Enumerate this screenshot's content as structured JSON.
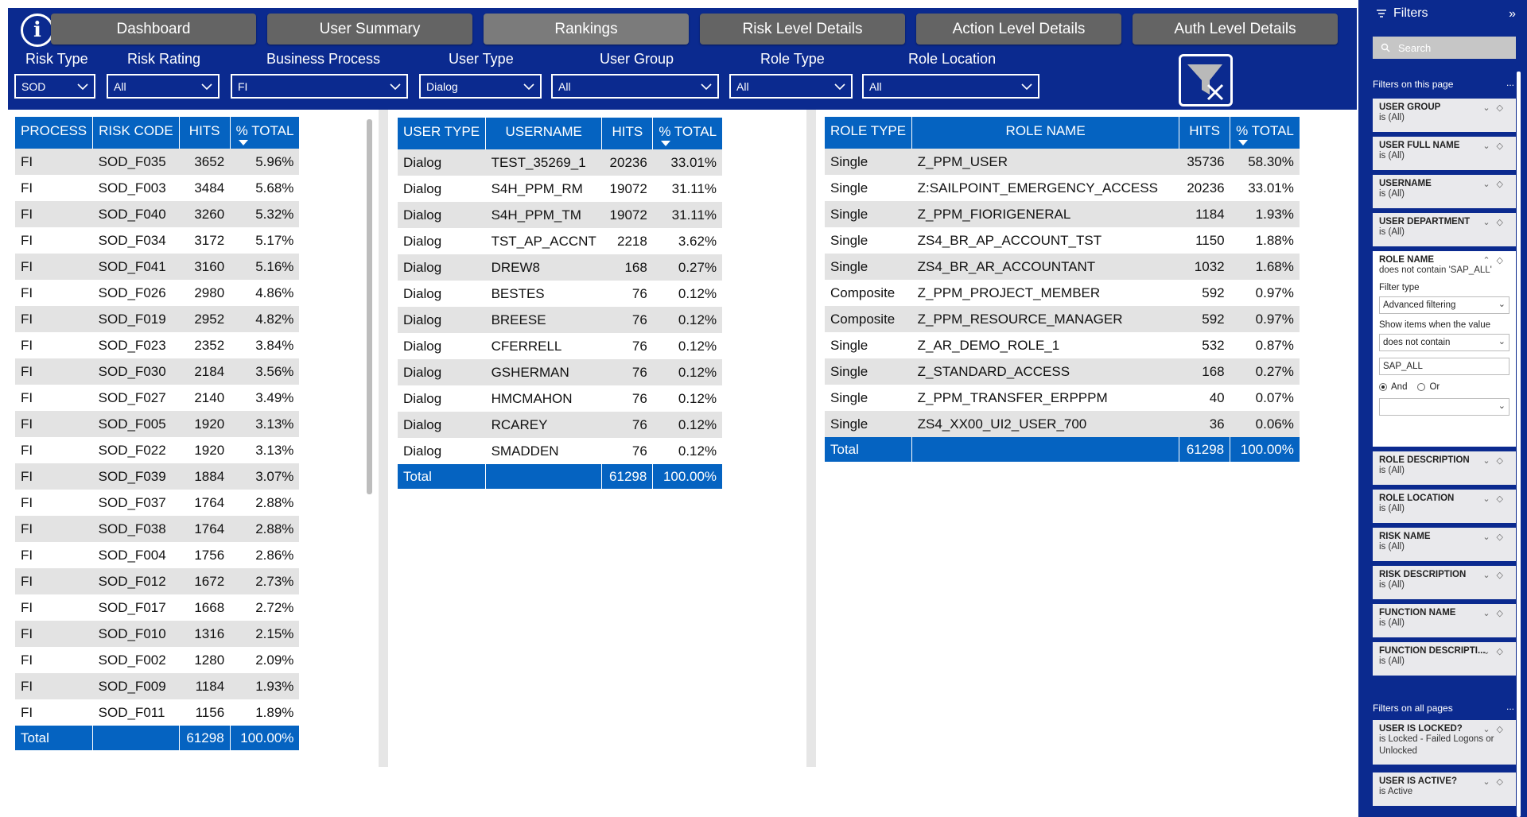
{
  "nav_tabs": [
    "Dashboard",
    "User Summary",
    "Rankings",
    "Risk Level Details",
    "Action Level Details",
    "Auth Level Details"
  ],
  "active_tab": "Rankings",
  "info_icon": "i",
  "slicers": {
    "risk_type": {
      "label": "Risk Type",
      "value": "SOD"
    },
    "risk_rating": {
      "label": "Risk Rating",
      "value": "All"
    },
    "business_process": {
      "label": "Business Process",
      "value": "FI"
    },
    "user_type": {
      "label": "User Type",
      "value": "Dialog"
    },
    "user_group": {
      "label": "User Group",
      "value": "All"
    },
    "role_type": {
      "label": "Role Type",
      "value": "All"
    },
    "role_location": {
      "label": "Role Location",
      "value": "All"
    }
  },
  "clear_filters_icon": "filter-clear-icon",
  "risk_table": {
    "headers": [
      "PROCESS",
      "RISK CODE",
      "HITS",
      "% TOTAL"
    ],
    "rows": [
      [
        "FI",
        "SOD_F035",
        "3652",
        "5.96%"
      ],
      [
        "FI",
        "SOD_F003",
        "3484",
        "5.68%"
      ],
      [
        "FI",
        "SOD_F040",
        "3260",
        "5.32%"
      ],
      [
        "FI",
        "SOD_F034",
        "3172",
        "5.17%"
      ],
      [
        "FI",
        "SOD_F041",
        "3160",
        "5.16%"
      ],
      [
        "FI",
        "SOD_F026",
        "2980",
        "4.86%"
      ],
      [
        "FI",
        "SOD_F019",
        "2952",
        "4.82%"
      ],
      [
        "FI",
        "SOD_F023",
        "2352",
        "3.84%"
      ],
      [
        "FI",
        "SOD_F030",
        "2184",
        "3.56%"
      ],
      [
        "FI",
        "SOD_F027",
        "2140",
        "3.49%"
      ],
      [
        "FI",
        "SOD_F005",
        "1920",
        "3.13%"
      ],
      [
        "FI",
        "SOD_F022",
        "1920",
        "3.13%"
      ],
      [
        "FI",
        "SOD_F039",
        "1884",
        "3.07%"
      ],
      [
        "FI",
        "SOD_F037",
        "1764",
        "2.88%"
      ],
      [
        "FI",
        "SOD_F038",
        "1764",
        "2.88%"
      ],
      [
        "FI",
        "SOD_F004",
        "1756",
        "2.86%"
      ],
      [
        "FI",
        "SOD_F012",
        "1672",
        "2.73%"
      ],
      [
        "FI",
        "SOD_F017",
        "1668",
        "2.72%"
      ],
      [
        "FI",
        "SOD_F010",
        "1316",
        "2.15%"
      ],
      [
        "FI",
        "SOD_F002",
        "1280",
        "2.09%"
      ],
      [
        "FI",
        "SOD_F009",
        "1184",
        "1.93%"
      ],
      [
        "FI",
        "SOD_F011",
        "1156",
        "1.89%"
      ]
    ],
    "total": [
      "Total",
      "",
      "61298",
      "100.00%"
    ]
  },
  "user_table": {
    "headers": [
      "USER TYPE",
      "USERNAME",
      "HITS",
      "% TOTAL"
    ],
    "rows": [
      [
        "Dialog",
        "TEST_35269_1",
        "20236",
        "33.01%"
      ],
      [
        "Dialog",
        "S4H_PPM_RM",
        "19072",
        "31.11%"
      ],
      [
        "Dialog",
        "S4H_PPM_TM",
        "19072",
        "31.11%"
      ],
      [
        "Dialog",
        "TST_AP_ACCNT",
        "2218",
        "3.62%"
      ],
      [
        "Dialog",
        "DREW8",
        "168",
        "0.27%"
      ],
      [
        "Dialog",
        "BESTES",
        "76",
        "0.12%"
      ],
      [
        "Dialog",
        "BREESE",
        "76",
        "0.12%"
      ],
      [
        "Dialog",
        "CFERRELL",
        "76",
        "0.12%"
      ],
      [
        "Dialog",
        "GSHERMAN",
        "76",
        "0.12%"
      ],
      [
        "Dialog",
        "HMCMAHON",
        "76",
        "0.12%"
      ],
      [
        "Dialog",
        "RCAREY",
        "76",
        "0.12%"
      ],
      [
        "Dialog",
        "SMADDEN",
        "76",
        "0.12%"
      ]
    ],
    "total": [
      "Total",
      "",
      "61298",
      "100.00%"
    ]
  },
  "role_table": {
    "headers": [
      "ROLE TYPE",
      "ROLE NAME",
      "HITS",
      "% TOTAL"
    ],
    "rows": [
      [
        "Single",
        "Z_PPM_USER",
        "35736",
        "58.30%"
      ],
      [
        "Single",
        "Z:SAILPOINT_EMERGENCY_ACCESS",
        "20236",
        "33.01%"
      ],
      [
        "Single",
        "Z_PPM_FIORIGENERAL",
        "1184",
        "1.93%"
      ],
      [
        "Single",
        "ZS4_BR_AP_ACCOUNT_TST",
        "1150",
        "1.88%"
      ],
      [
        "Single",
        "ZS4_BR_AR_ACCOUNTANT",
        "1032",
        "1.68%"
      ],
      [
        "Composite",
        "Z_PPM_PROJECT_MEMBER",
        "592",
        "0.97%"
      ],
      [
        "Composite",
        "Z_PPM_RESOURCE_MANAGER",
        "592",
        "0.97%"
      ],
      [
        "Single",
        "Z_AR_DEMO_ROLE_1",
        "532",
        "0.87%"
      ],
      [
        "Single",
        "Z_STANDARD_ACCESS",
        "168",
        "0.27%"
      ],
      [
        "Single",
        "Z_PPM_TRANSFER_ERPPPM",
        "40",
        "0.07%"
      ],
      [
        "Single",
        "ZS4_XX00_UI2_USER_700",
        "36",
        "0.06%"
      ]
    ],
    "total": [
      "Total",
      "",
      "61298",
      "100.00%"
    ]
  },
  "filter_pane": {
    "title": "Filters",
    "search_placeholder": "Search",
    "section_page": "Filters on this page",
    "section_all": "Filters on all pages",
    "more": "...",
    "page_filters": [
      {
        "name": "USER GROUP",
        "state": "is (All)"
      },
      {
        "name": "USER FULL NAME",
        "state": "is (All)"
      },
      {
        "name": "USERNAME",
        "state": "is (All)"
      },
      {
        "name": "USER DEPARTMENT",
        "state": "is (All)"
      }
    ],
    "role_name_filter": {
      "name": "ROLE NAME",
      "state": "does not contain 'SAP_ALL'",
      "filter_type_label": "Filter type",
      "filter_type_value": "Advanced filtering",
      "show_items_label": "Show items when the value",
      "condition_value": "does not contain",
      "input_value": "SAP_ALL",
      "and_label": "And",
      "or_label": "Or",
      "second_condition_value": ""
    },
    "page_filters_after": [
      {
        "name": "ROLE DESCRIPTION",
        "state": "is (All)"
      },
      {
        "name": "ROLE LOCATION",
        "state": "is (All)"
      },
      {
        "name": "RISK NAME",
        "state": "is (All)"
      },
      {
        "name": "RISK DESCRIPTION",
        "state": "is (All)"
      },
      {
        "name": "FUNCTION NAME",
        "state": "is (All)"
      },
      {
        "name": "FUNCTION DESCRIPTI...",
        "state": "is (All)"
      }
    ],
    "all_page_filters": [
      {
        "name": "USER IS LOCKED?",
        "state": "is Locked - Failed Logons or Unlocked"
      },
      {
        "name": "USER IS ACTIVE?",
        "state": "is Active"
      }
    ]
  },
  "colors": {
    "header_navy": "#0b2a8f",
    "table_blue": "#0563c1",
    "tab_gray": "#646464",
    "row_stripe": "#e3e3e3"
  }
}
